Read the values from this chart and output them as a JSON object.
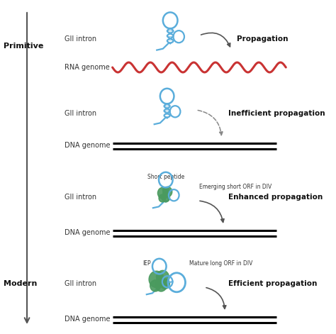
{
  "bg_color": "#ffffff",
  "blue_color": "#5aaddb",
  "red_color": "#c93333",
  "green_color": "#4a9a5e",
  "text_color": "#333333",
  "bold_text_color": "#111111",
  "gray_color": "#888888",
  "primitive_label": "Primitive",
  "modern_label": "Modern",
  "propagation_labels": [
    "Propagation",
    "Inefficient propagation",
    "Enhanced propagation",
    "Efficient propagation"
  ],
  "annotation_labels": [
    "Short peptide",
    "Emerging short ORF in DIV",
    "IEP",
    "Mature long ORF in DIV"
  ],
  "figsize": [
    4.74,
    4.71
  ],
  "dpi": 100
}
